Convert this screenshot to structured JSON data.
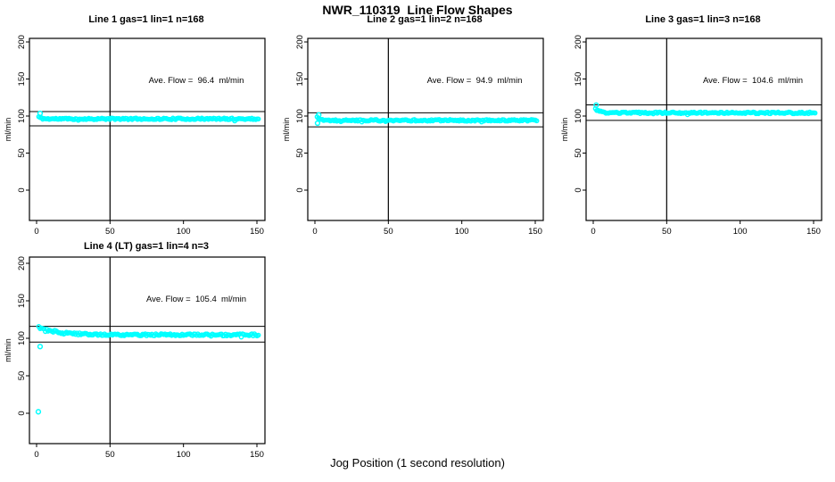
{
  "page": {
    "title": "NWR_110319  Line Flow Shapes",
    "x_axis_title": "Jog Position (1 second resolution)",
    "background": "#ffffff",
    "marker_color": "#00FFFF",
    "axis_color": "#000000"
  },
  "chart_data": [
    {
      "type": "scatter",
      "title": "Line 1 gas=1 lin=1 n=168",
      "annotation": "Ave. Flow =  96.4  ml/min",
      "ave_flow_ml_min": 96.4,
      "n": 168,
      "ylabel": "ml/min",
      "x_ticks": [
        0,
        50,
        100,
        150
      ],
      "y_ticks": [
        0,
        50,
        100,
        150,
        200
      ],
      "xlim": [
        -5,
        155
      ],
      "ylim": [
        -40,
        205
      ],
      "marker": "open-circle",
      "marker_color": "#00FFFF",
      "vline_x": 50,
      "ref_lines": [
        106.0,
        86.8
      ],
      "band": {
        "x_start": 1.5,
        "x_end": 151,
        "start_value": 104,
        "settle_value": 96.2,
        "settle_tau": 1.5,
        "noise": 1.1
      },
      "outliers": [
        {
          "x": 2.4,
          "y": 103.6
        }
      ],
      "grid_row": 0,
      "seed": 11
    },
    {
      "type": "scatter",
      "title": "Line 2 gas=1 lin=2 n=168",
      "annotation": "Ave. Flow =  94.9  ml/min",
      "ave_flow_ml_min": 94.9,
      "n": 168,
      "ylabel": "ml/min",
      "x_ticks": [
        0,
        50,
        100,
        150
      ],
      "y_ticks": [
        0,
        50,
        100,
        150,
        200
      ],
      "xlim": [
        -5,
        155
      ],
      "ylim": [
        -40,
        205
      ],
      "marker": "open-circle",
      "marker_color": "#00FFFF",
      "vline_x": 50,
      "ref_lines": [
        104.4,
        85.4
      ],
      "band": {
        "x_start": 1.5,
        "x_end": 151,
        "start_value": 103,
        "settle_value": 94.2,
        "settle_tau": 2.2,
        "noise": 1.1
      },
      "outliers": [
        {
          "x": 1.8,
          "y": 90.4
        },
        {
          "x": 2.6,
          "y": 101.5
        }
      ],
      "grid_row": 0,
      "seed": 22
    },
    {
      "type": "scatter",
      "title": "Line 3 gas=1 lin=3 n=168",
      "annotation": "Ave. Flow =  104.6  ml/min",
      "ave_flow_ml_min": 104.6,
      "n": 168,
      "ylabel": "ml/min",
      "x_ticks": [
        0,
        50,
        100,
        150
      ],
      "y_ticks": [
        0,
        50,
        100,
        150,
        200
      ],
      "xlim": [
        -5,
        155
      ],
      "ylim": [
        -40,
        205
      ],
      "marker": "open-circle",
      "marker_color": "#00FFFF",
      "vline_x": 50,
      "ref_lines": [
        115.1,
        94.1
      ],
      "band": {
        "x_start": 1.5,
        "x_end": 151,
        "start_value": 114.5,
        "settle_value": 104.3,
        "settle_tau": 2.5,
        "noise": 1.1
      },
      "outliers": [
        {
          "x": 2.0,
          "y": 114.8
        }
      ],
      "grid_row": 0,
      "seed": 33
    },
    {
      "type": "scatter",
      "title": "Line 4 (LT) gas=1 lin=4 n=3",
      "annotation": "Ave. Flow =  105.4  ml/min",
      "ave_flow_ml_min": 105.4,
      "n": 3,
      "ylabel": "ml/min",
      "x_ticks": [
        0,
        50,
        100,
        150
      ],
      "y_ticks": [
        0,
        50,
        100,
        150,
        200
      ],
      "xlim": [
        -5,
        155
      ],
      "ylim": [
        -40,
        205
      ],
      "marker": "open-circle",
      "marker_color": "#00FFFF",
      "vline_x": 50,
      "ref_lines": [
        115.9,
        94.9
      ],
      "band": {
        "x_start": 1.5,
        "x_end": 151,
        "start_value": 116,
        "settle_value": 104.6,
        "settle_tau": 13,
        "noise": 1.4
      },
      "outliers": [
        {
          "x": 2.4,
          "y": 89
        },
        {
          "x": 1.2,
          "y": 2
        }
      ],
      "grid_row": 1,
      "seed": 44
    }
  ]
}
